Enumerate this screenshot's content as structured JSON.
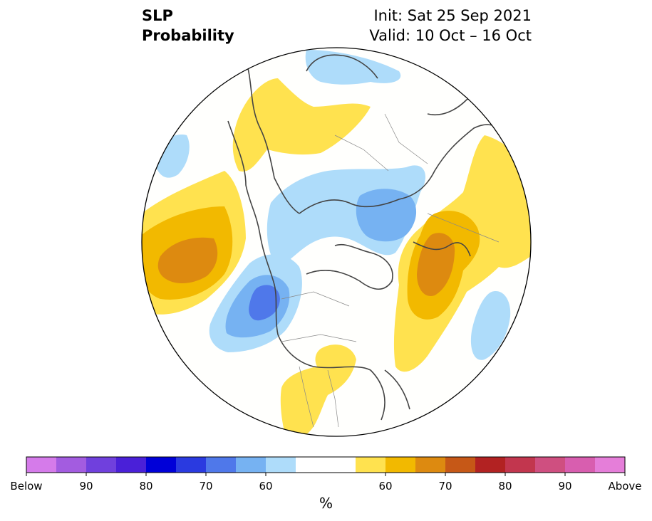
{
  "title": {
    "left_line1": "SLP",
    "left_line2": "Probability",
    "right_line1": "Init: Sat 25 Sep 2021",
    "right_line2": "Valid: 10 Oct – 16 Oct"
  },
  "colorbar": {
    "unit": "%",
    "colors": [
      "#d57bea",
      "#a35ce0",
      "#7040dd",
      "#4a20d8",
      "#0000d8",
      "#2a3ae0",
      "#4f78ea",
      "#76b2f2",
      "#aedcfa",
      "#ffffff",
      "#ffffff",
      "#ffe24f",
      "#f2b900",
      "#dd8a10",
      "#c65817",
      "#b22222",
      "#c2364e",
      "#cf4f80",
      "#d85eaf",
      "#e57ed9"
    ],
    "tick_labels": [
      "Below",
      "90",
      "80",
      "70",
      "60",
      "60",
      "70",
      "80",
      "90",
      "Above"
    ]
  },
  "map": {
    "projection": "north-polar-stereographic",
    "anomaly_colors": {
      "below_50": "#aedcfa",
      "below_60": "#76b2f2",
      "below_70": "#4f78ea",
      "above_50": "#ffe24f",
      "above_60": "#f2b900",
      "above_70": "#dd8a10"
    }
  }
}
